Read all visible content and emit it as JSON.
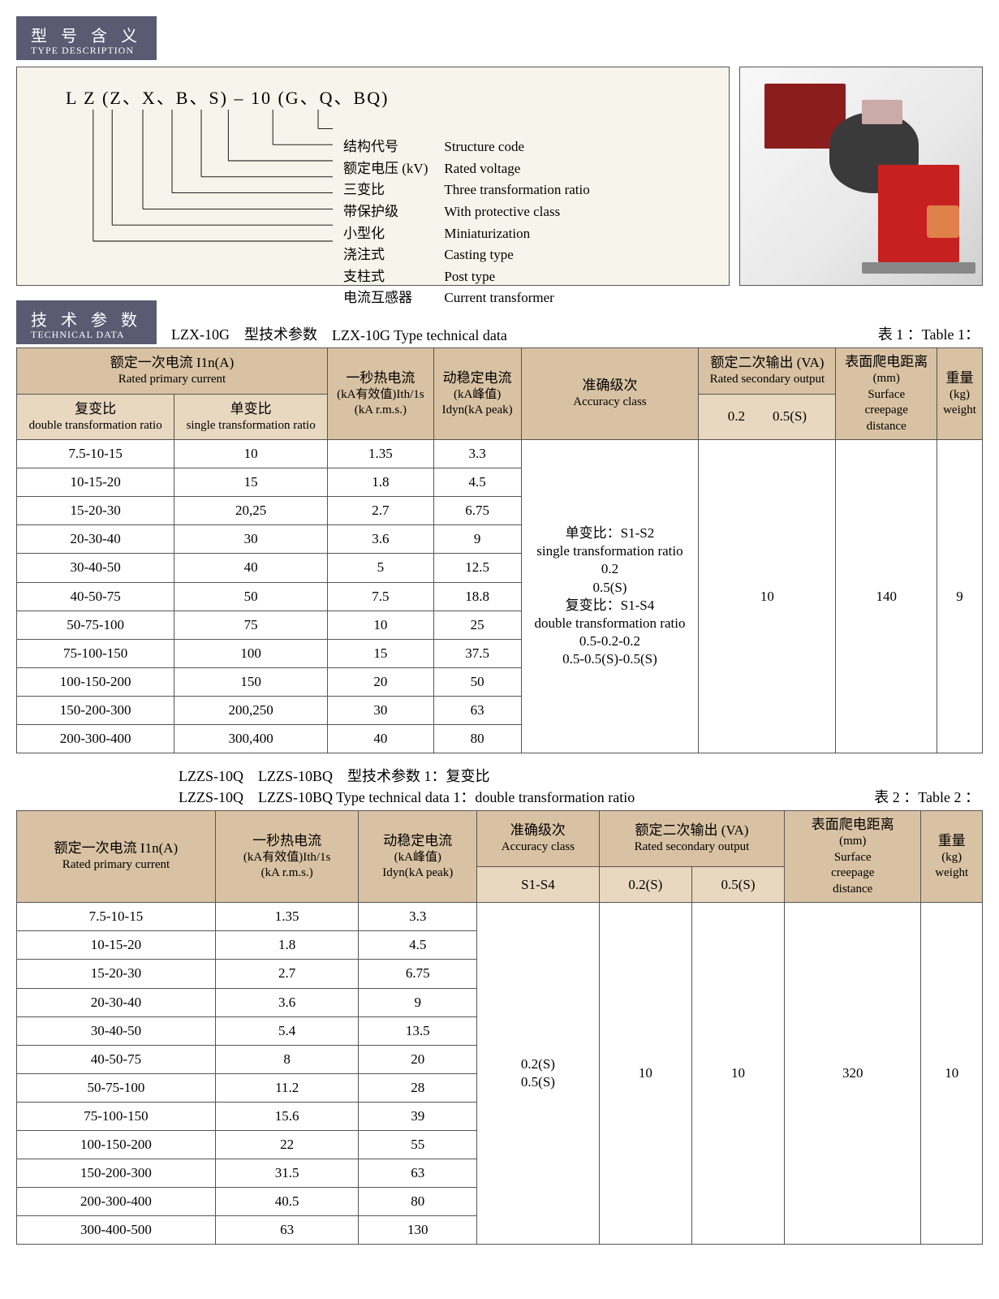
{
  "sections": {
    "typeDesc": {
      "cn": "型 号 含 义",
      "en": "TYPE DESCRIPTION"
    },
    "techData": {
      "cn": "技 术 参 数",
      "en": "TECHNICAL DATA"
    }
  },
  "codeLine": "L Z (Z、X、B、S) – 10 (G、Q、BQ)",
  "codeParts": [
    {
      "cn": "结构代号",
      "en": "Structure code"
    },
    {
      "cn": "额定电压 (kV)",
      "en": "Rated voltage"
    },
    {
      "cn": "三变比",
      "en": "Three transformation ratio"
    },
    {
      "cn": "带保护级",
      "en": "With protective class"
    },
    {
      "cn": "小型化",
      "en": "Miniaturization"
    },
    {
      "cn": "浇注式",
      "en": "Casting type"
    },
    {
      "cn": "支柱式",
      "en": "Post type"
    },
    {
      "cn": "电流互感器",
      "en": "Current transformer"
    }
  ],
  "table1": {
    "titleCn": "LZX-10G　型技术参数",
    "titleEn": "LZX-10G Type technical data",
    "label": "表 1 ：Table 1：",
    "headers": {
      "primaryCn": "额定一次电流 I1n(A)",
      "primaryEn": "Rated primary current",
      "doubleCn": "复变比",
      "doubleEn": "double transformation ratio",
      "singleCn": "单变比",
      "singleEn": "single transformation ratio",
      "thermalCn": "一秒热电流",
      "thermalMid": "(kA有效值)Ith/1s",
      "thermalEn": "(kA r.m.s.)",
      "dynCn": "动稳定电流",
      "dynMid": "(kA峰值)",
      "dynEn": "Idyn(kA peak)",
      "accCn": "准确级次",
      "accEn": "Accuracy class",
      "secCn": "额定二次输出 (VA)",
      "secEn": "Rated secondary output",
      "secSub": "0.2　　0.5(S)",
      "creepCn": "表面爬电距离",
      "creepMm": "(mm)",
      "creepEn1": "Surface",
      "creepEn2": "creepage",
      "creepEn3": "distance",
      "weightCn": "重量",
      "weightKg": "(kg)",
      "weightEn": "weight"
    },
    "rows": [
      [
        "7.5-10-15",
        "10",
        "1.35",
        "3.3"
      ],
      [
        "10-15-20",
        "15",
        "1.8",
        "4.5"
      ],
      [
        "15-20-30",
        "20,25",
        "2.7",
        "6.75"
      ],
      [
        "20-30-40",
        "30",
        "3.6",
        "9"
      ],
      [
        "30-40-50",
        "40",
        "5",
        "12.5"
      ],
      [
        "40-50-75",
        "50",
        "7.5",
        "18.8"
      ],
      [
        "50-75-100",
        "75",
        "10",
        "25"
      ],
      [
        "75-100-150",
        "100",
        "15",
        "37.5"
      ],
      [
        "100-150-200",
        "150",
        "20",
        "50"
      ],
      [
        "150-200-300",
        "200,250",
        "30",
        "63"
      ],
      [
        "200-300-400",
        "300,400",
        "40",
        "80"
      ]
    ],
    "accuracyCell": "单变比：S1-S2\nsingle transformation ratio\n0.2\n0.5(S)\n复变比：S1-S4\ndouble transformation ratio\n0.5-0.2-0.2\n0.5-0.5(S)-0.5(S)",
    "secondaryOut": "10",
    "creepage": "140",
    "weight": "9"
  },
  "table2": {
    "titleCn": "LZZS-10Q　LZZS-10BQ　型技术参数 1：复变比",
    "titleEn": "LZZS-10Q　LZZS-10BQ Type technical data 1：double transformation ratio",
    "label": "表 2 ：Table 2 ：",
    "headers": {
      "primaryCn": "额定一次电流 I1n(A)",
      "primaryEn": "Rated primary current",
      "thermalCn": "一秒热电流",
      "thermalMid": "(kA有效值)Ith/1s",
      "thermalEn": "(kA r.m.s.)",
      "dynCn": "动稳定电流",
      "dynMid": "(kA峰值)",
      "dynEn": "Idyn(kA peak)",
      "accCn": "准确级次",
      "accEn": "Accuracy class",
      "accSub": "S1-S4",
      "secCn": "额定二次输出 (VA)",
      "secEn": "Rated secondary output",
      "secSub1": "0.2(S)",
      "secSub2": "0.5(S)",
      "creepCn": "表面爬电距离",
      "creepMm": "(mm)",
      "creepEn1": "Surface",
      "creepEn2": "creepage",
      "creepEn3": "distance",
      "weightCn": "重量",
      "weightKg": "(kg)",
      "weightEn": "weight"
    },
    "rows": [
      [
        "7.5-10-15",
        "1.35",
        "3.3"
      ],
      [
        "10-15-20",
        "1.8",
        "4.5"
      ],
      [
        "15-20-30",
        "2.7",
        "6.75"
      ],
      [
        "20-30-40",
        "3.6",
        "9"
      ],
      [
        "30-40-50",
        "5.4",
        "13.5"
      ],
      [
        "40-50-75",
        "8",
        "20"
      ],
      [
        "50-75-100",
        "11.2",
        "28"
      ],
      [
        "75-100-150",
        "15.6",
        "39"
      ],
      [
        "100-150-200",
        "22",
        "55"
      ],
      [
        "150-200-300",
        "31.5",
        "63"
      ],
      [
        "200-300-400",
        "40.5",
        "80"
      ],
      [
        "300-400-500",
        "63",
        "130"
      ]
    ],
    "accuracyCell": "0.2(S)\n0.5(S)",
    "sec1": "10",
    "sec2": "10",
    "creepage": "320",
    "weight": "10"
  }
}
